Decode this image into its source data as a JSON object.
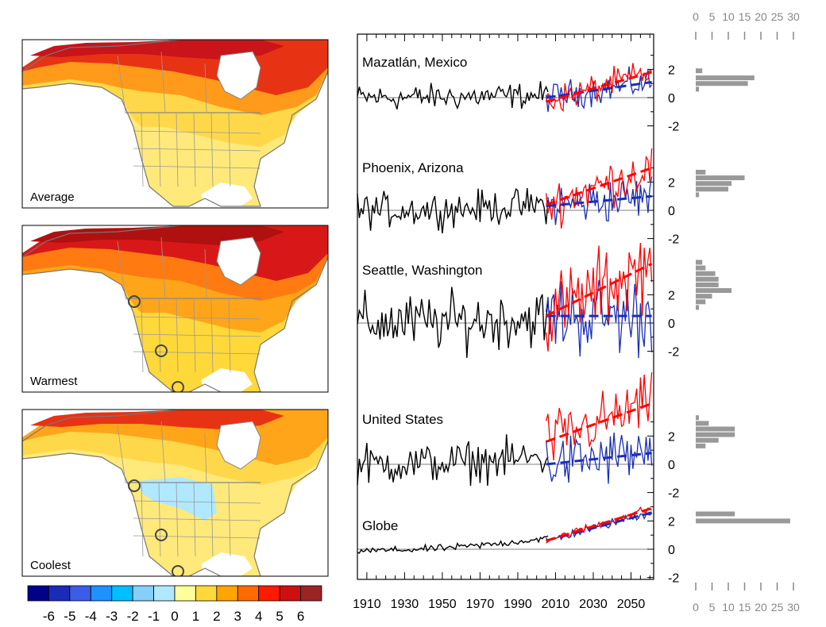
{
  "colorbar": {
    "labels": [
      "-6",
      "-5",
      "-4",
      "-3",
      "-2",
      "-1",
      "0",
      "1",
      "2",
      "3",
      "4",
      "5",
      "6"
    ],
    "colors": [
      "#00008b",
      "#1a2bb8",
      "#3a5ce6",
      "#1e90ff",
      "#00bfff",
      "#87cefa",
      "#b0e8ff",
      "#ffff99",
      "#ffd83a",
      "#ffa500",
      "#ff6a00",
      "#ff1a00",
      "#cc1010",
      "#9a2424"
    ]
  },
  "maps": [
    {
      "label": "Average",
      "colors": {
        "far_north": "#c8141a",
        "north": "#e83214",
        "mid": "#ff9a1a",
        "south": "#ffd84a",
        "far_south": "#ffe97a"
      },
      "circles": []
    },
    {
      "label": "Warmest",
      "colors": {
        "far_north": "#b01010",
        "north": "#d81818",
        "mid": "#ff7a10",
        "south": "#ffa51a",
        "far_south": "#ffd83a"
      },
      "circles": [
        "seattle",
        "phoenix",
        "mazatlan"
      ]
    },
    {
      "label": "Coolest",
      "colors": {
        "far_north": "#e83214",
        "north": "#ffa51a",
        "mid": "#ffd84a",
        "south": "#ffe97a",
        "far_south": "#ffe97a"
      },
      "cold_patch": "#b0e8ff",
      "circles": [
        "seattle",
        "phoenix",
        "mazatlan"
      ]
    }
  ],
  "histogram_axis": {
    "ticks": [
      "0",
      "5",
      "10",
      "15",
      "20",
      "25",
      "30"
    ]
  },
  "chart_data": {
    "type": "line",
    "x_axis": {
      "range": [
        1905,
        2062
      ],
      "ticks": [
        1910,
        1930,
        1950,
        1970,
        1990,
        2010,
        2030,
        2050
      ],
      "tick_labels": [
        "1910",
        "1930",
        "1950",
        "1970",
        "1990",
        "2010",
        "2030",
        "2050"
      ]
    },
    "colors": {
      "observed": "#000000",
      "warmest": "#ff0000",
      "coolest": "#1a2fb5",
      "histogram": "#999999"
    },
    "panels": [
      {
        "title": "Mazatlán, Mexico",
        "ylim": [
          -2,
          2
        ],
        "yticks": [
          -2,
          0,
          2
        ],
        "ytick_labels": [
          "-2",
          "0",
          "2"
        ],
        "observed_noise": 0.45,
        "obs_trend": [
          0,
          0.2
        ],
        "future_noise": 0.5,
        "warmest_trend": [
          1905,
          2062
        ],
        "warmest_values": [
          -0.3,
          1.8
        ],
        "coolest_trend": [
          1905,
          2062
        ],
        "coolest_values": [
          0.0,
          1.1
        ],
        "hist_counts": [
          2,
          18,
          16,
          1
        ],
        "hist_centers": [
          1.9,
          1.4,
          1.0,
          0.6
        ]
      },
      {
        "title": "Phoenix, Arizona",
        "ylim": [
          -2,
          2
        ],
        "yticks": [
          -2,
          0,
          2
        ],
        "ytick_labels": [
          "-2",
          "0",
          "2"
        ],
        "observed_noise": 0.6,
        "obs_trend": [
          0,
          0.4
        ],
        "future_noise": 0.8,
        "warmest_values": [
          0.4,
          3.0
        ],
        "coolest_values": [
          0.3,
          1.0
        ],
        "hist_counts": [
          3,
          15,
          11,
          10,
          1
        ],
        "hist_centers": [
          2.7,
          2.3,
          1.9,
          1.5,
          1.1
        ]
      },
      {
        "title": "Seattle, Washington",
        "ylim": [
          -2,
          2
        ],
        "yticks": [
          -2,
          0,
          2
        ],
        "ytick_labels": [
          "-2",
          "0",
          "2"
        ],
        "observed_noise": 1.0,
        "obs_trend": [
          0,
          0.4
        ],
        "future_noise": 1.4,
        "warmest_values": [
          0.5,
          4.2
        ],
        "coolest_values": [
          0.5,
          0.5
        ],
        "hist_counts": [
          2,
          3,
          6,
          7,
          7,
          11,
          5,
          3,
          1
        ],
        "hist_centers": [
          4.3,
          3.9,
          3.5,
          3.1,
          2.7,
          2.3,
          1.9,
          1.5,
          1.1
        ]
      },
      {
        "title": "United States",
        "ylim": [
          -2,
          2
        ],
        "yticks": [
          -2,
          0,
          2
        ],
        "ytick_labels": [
          "-2",
          "0",
          "2"
        ],
        "observed_noise": 0.7,
        "obs_trend": [
          0,
          0.5
        ],
        "future_noise": 1.0,
        "warmest_values": [
          1.6,
          4.3
        ],
        "coolest_values": [
          0.0,
          0.8
        ],
        "hist_counts": [
          1,
          4,
          12,
          12,
          7,
          3
        ],
        "hist_centers": [
          3.3,
          2.9,
          2.5,
          2.1,
          1.7,
          1.3
        ]
      },
      {
        "title": "Globe",
        "ylim": [
          -2,
          2
        ],
        "yticks": [
          -2,
          0,
          2
        ],
        "ytick_labels": [
          "-2",
          "0",
          "2"
        ],
        "observed_noise": 0.12,
        "obs_trend": [
          -0.1,
          0.8
        ],
        "future_noise": 0.15,
        "warmest_values": [
          0.6,
          2.9
        ],
        "coolest_values": [
          0.6,
          2.6
        ],
        "hist_counts": [
          12,
          29
        ],
        "hist_centers": [
          2.5,
          2.0
        ]
      }
    ]
  }
}
